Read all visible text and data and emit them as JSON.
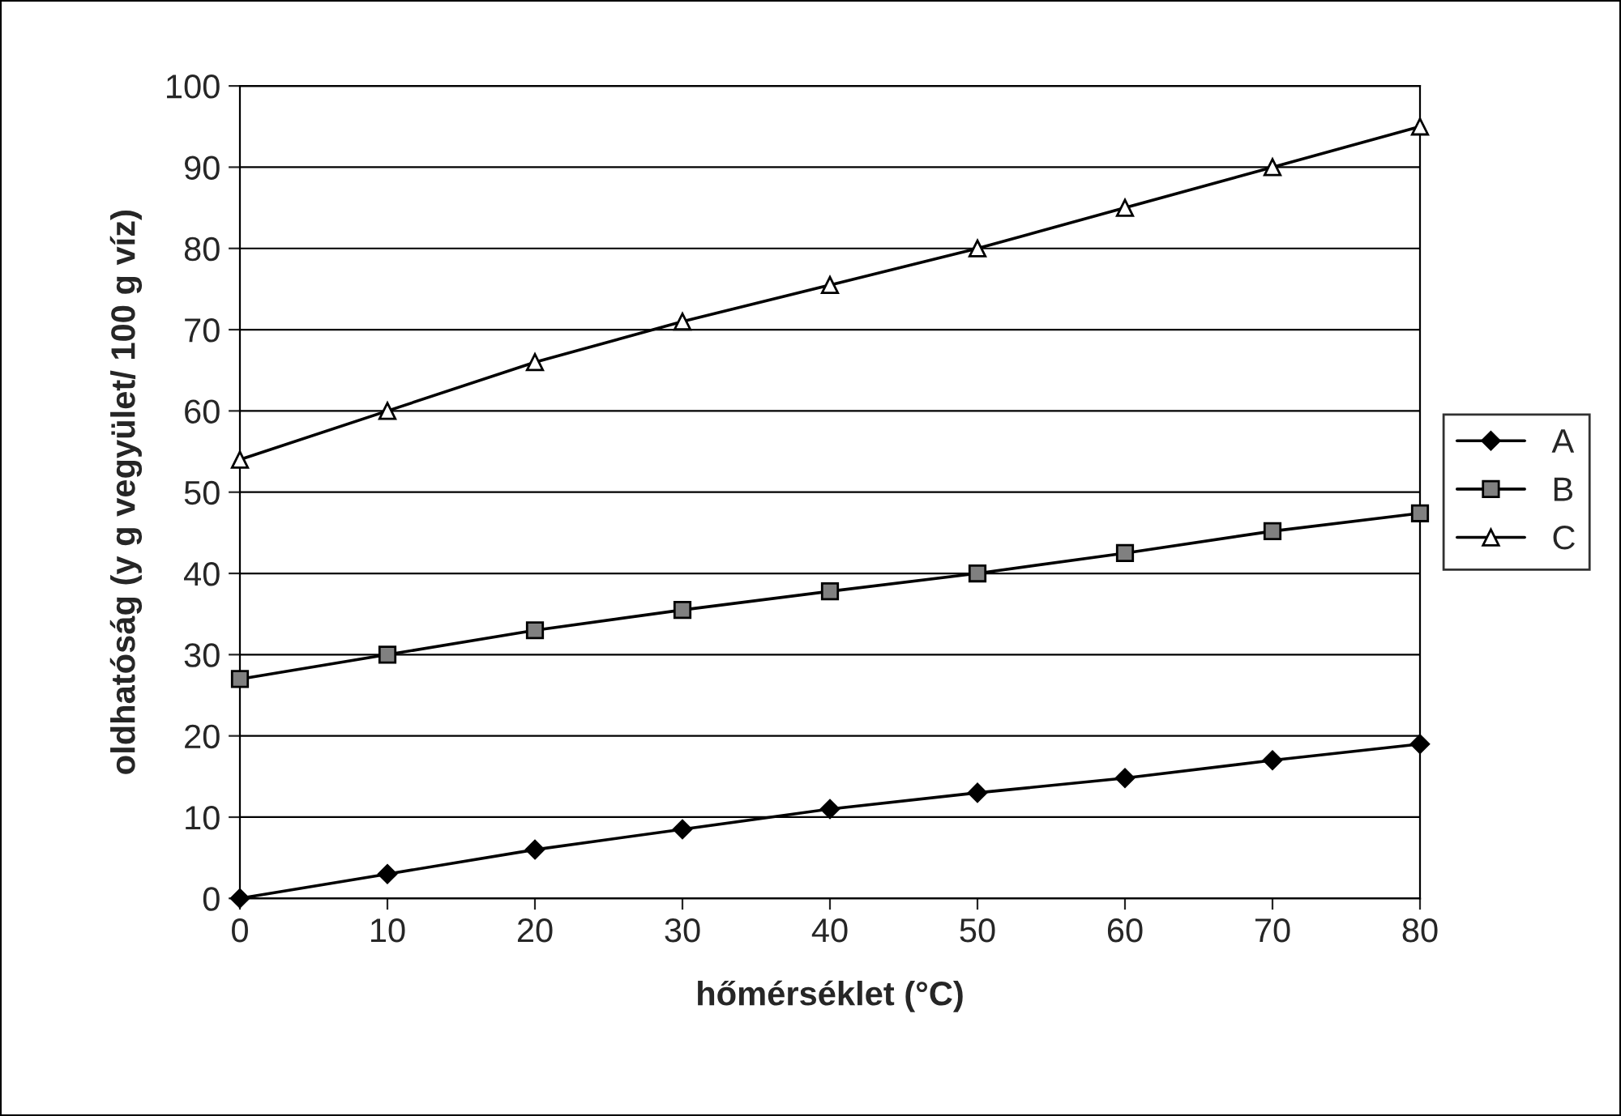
{
  "chart_data": {
    "type": "line",
    "xlabel": "hőmérséklet (°C)",
    "ylabel": "oldhatóság (y g vegyület/ 100 g víz)",
    "x": [
      0,
      10,
      20,
      30,
      40,
      50,
      60,
      70,
      80
    ],
    "series": [
      {
        "name": "A",
        "color": "#000000",
        "marker": "diamond",
        "values": [
          0,
          3,
          6,
          8.5,
          11,
          13,
          14.8,
          17,
          19
        ]
      },
      {
        "name": "B",
        "color": "#808080",
        "marker": "square",
        "values": [
          27,
          30,
          33,
          35.5,
          37.8,
          40,
          42.5,
          45.2,
          47.4
        ]
      },
      {
        "name": "C",
        "color": "#ffffff",
        "marker": "triangle",
        "values": [
          54,
          60,
          66,
          71,
          75.5,
          80,
          85,
          90,
          95
        ]
      }
    ],
    "xlim": [
      0,
      80
    ],
    "xticks": [
      0,
      10,
      20,
      30,
      40,
      50,
      60,
      70,
      80
    ],
    "ylim": [
      0,
      100
    ],
    "yticks": [
      0,
      10,
      20,
      30,
      40,
      50,
      60,
      70,
      80,
      90,
      100
    ],
    "grid": "y",
    "legend": "right",
    "line_style": "solid"
  }
}
